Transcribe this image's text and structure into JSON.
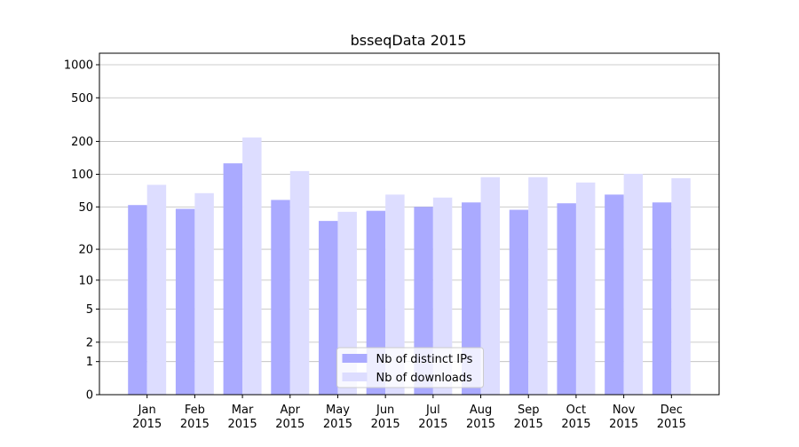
{
  "chart_data": {
    "type": "bar",
    "title": "bsseqData 2015",
    "categories": [
      "Jan\n2015",
      "Feb\n2015",
      "Mar\n2015",
      "Apr\n2015",
      "May\n2015",
      "Jun\n2015",
      "Jul\n2015",
      "Aug\n2015",
      "Sep\n2015",
      "Oct\n2015",
      "Nov\n2015",
      "Dec\n2015"
    ],
    "series": [
      {
        "name": "Nb of distinct IPs",
        "color": "#aaaaff",
        "values": [
          52,
          48,
          126,
          58,
          37,
          46,
          50,
          55,
          47,
          54,
          65,
          55
        ]
      },
      {
        "name": "Nb of downloads",
        "color": "#ddddff",
        "values": [
          80,
          67,
          217,
          107,
          45,
          65,
          61,
          94,
          94,
          84,
          101,
          92
        ]
      }
    ],
    "yscale": "log1p",
    "ylim": [
      0,
      1273
    ],
    "yticks": [
      0,
      1,
      2,
      5,
      10,
      20,
      50,
      100,
      200,
      500,
      1000
    ],
    "grid": true,
    "legend": "lower center"
  }
}
